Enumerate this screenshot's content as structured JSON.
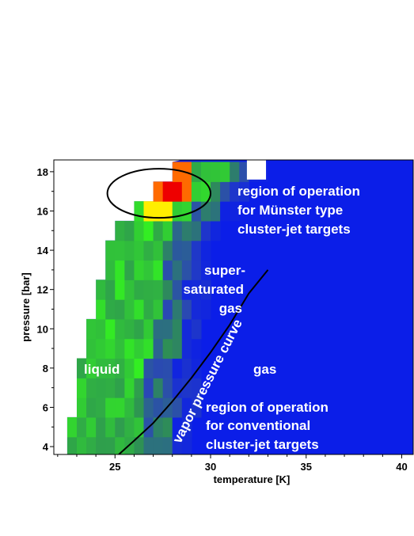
{
  "chart_data": {
    "type": "heatmap",
    "xlabel": "temperature [K]",
    "ylabel": "pressure [bar]",
    "xlim": [
      21.8,
      40.6
    ],
    "ylim": [
      3.6,
      18.6
    ],
    "x_ticks": [
      25,
      30,
      35,
      40
    ],
    "y_ticks": [
      4,
      6,
      8,
      10,
      12,
      14,
      16,
      18
    ],
    "grid": false,
    "cell_size": {
      "temperature": 0.5,
      "pressure": 1.0
    },
    "colors": {
      "background_gas": "#0b1ee8",
      "liquid_light": "#33ee22",
      "liquid_dark": "#2e8f55",
      "hot_red": "#ee0000",
      "hot_orange": "#ff6a00",
      "hot_yellow": "#ffee00",
      "gap_white": "#ffffff"
    },
    "regions": [
      {
        "name": "liquid",
        "level": "high",
        "boundary_left": [
          [
            22.3,
            4
          ],
          [
            22.6,
            5
          ],
          [
            22.8,
            6
          ],
          [
            23.0,
            7
          ],
          [
            23.2,
            8
          ],
          [
            23.4,
            9
          ],
          [
            23.5,
            10
          ],
          [
            23.8,
            11
          ],
          [
            24.1,
            12
          ],
          [
            24.4,
            13
          ],
          [
            24.6,
            14
          ],
          [
            24.8,
            15
          ],
          [
            25.8,
            16
          ],
          [
            26.8,
            17
          ],
          [
            28.2,
            18
          ]
        ]
      }
    ],
    "vapor_pressure_curve": [
      [
        25.2,
        3.6
      ],
      [
        26,
        4.3
      ],
      [
        27,
        5.2
      ],
      [
        28,
        6.3
      ],
      [
        29,
        7.5
      ],
      [
        30,
        8.8
      ],
      [
        31,
        10.2
      ],
      [
        32,
        11.8
      ],
      [
        33,
        13.0
      ]
    ],
    "highlight_ellipse": {
      "center": [
        27.3,
        16.9
      ],
      "rx_K": 2.7,
      "ry_bar": 1.25
    },
    "annotations": [
      {
        "text": [
          "region of operation",
          "for Münster type",
          "cluster-jet targets"
        ],
        "x": 31.5,
        "y": [
          16.9,
          15.9,
          14.9
        ]
      },
      {
        "text": [
          "super-",
          "saturated",
          "gas"
        ],
        "x": 29.9,
        "y": [
          12.95,
          12.0,
          11.05
        ]
      },
      {
        "text": [
          "liquid"
        ],
        "x": 23.7,
        "y": 7.95
      },
      {
        "text": [
          "gas"
        ],
        "x": 32.4,
        "y": 7.95
      },
      {
        "text": [
          "region of operation",
          "for conventional",
          "cluster-jet targets"
        ],
        "x": 30.0,
        "y": [
          5.9,
          4.95,
          3.95
        ]
      },
      {
        "text": [
          "vapor pressure curve"
        ],
        "rotated": true
      }
    ]
  }
}
